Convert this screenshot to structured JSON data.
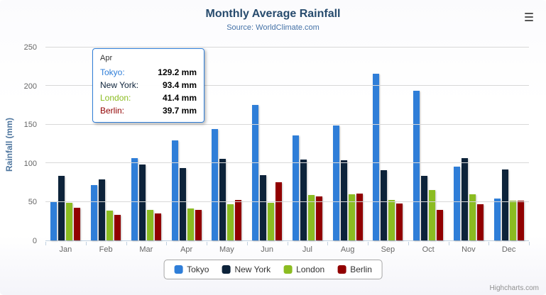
{
  "chart_data": {
    "type": "bar",
    "title": "Monthly Average Rainfall",
    "subtitle": "Source: WorldClimate.com",
    "xlabel": "",
    "ylabel": "Rainfall (mm)",
    "ylim": [
      0,
      250
    ],
    "yticks": [
      0,
      50,
      100,
      150,
      200,
      250
    ],
    "grid": true,
    "legend_position": "bottom",
    "categories": [
      "Jan",
      "Feb",
      "Mar",
      "Apr",
      "May",
      "Jun",
      "Jul",
      "Aug",
      "Sep",
      "Oct",
      "Nov",
      "Dec"
    ],
    "series": [
      {
        "name": "Tokyo",
        "color": "#2f7ed8",
        "values": [
          49.9,
          71.5,
          106.4,
          129.2,
          144.0,
          176.0,
          135.6,
          148.5,
          216.4,
          194.1,
          95.6,
          54.4
        ]
      },
      {
        "name": "New York",
        "color": "#0d233a",
        "values": [
          83.6,
          78.8,
          98.5,
          93.4,
          106.0,
          84.5,
          105.0,
          104.3,
          91.2,
          83.5,
          106.6,
          92.3
        ]
      },
      {
        "name": "London",
        "color": "#8bbc21",
        "values": [
          48.9,
          38.8,
          39.3,
          41.4,
          47.0,
          48.3,
          59.0,
          59.6,
          52.4,
          65.2,
          59.3,
          51.2
        ]
      },
      {
        "name": "Berlin",
        "color": "#910000",
        "values": [
          42.4,
          33.2,
          34.5,
          39.7,
          52.6,
          75.5,
          57.4,
          60.4,
          47.6,
          39.1,
          46.8,
          51.1
        ]
      }
    ]
  },
  "tooltip": {
    "header": "Apr",
    "rows": [
      {
        "label": "Tokyo:",
        "value": "129.2 mm",
        "color": "#2f7ed8"
      },
      {
        "label": "New York:",
        "value": "93.4 mm",
        "color": "#0d233a"
      },
      {
        "label": "London:",
        "value": "41.4 mm",
        "color": "#8bbc21"
      },
      {
        "label": "Berlin:",
        "value": "39.7 mm",
        "color": "#910000"
      }
    ]
  },
  "legend": {
    "items": [
      {
        "label": "Tokyo",
        "color": "#2f7ed8"
      },
      {
        "label": "New York",
        "color": "#0d233a"
      },
      {
        "label": "London",
        "color": "#8bbc21"
      },
      {
        "label": "Berlin",
        "color": "#910000"
      }
    ]
  },
  "credits": "Highcharts.com"
}
